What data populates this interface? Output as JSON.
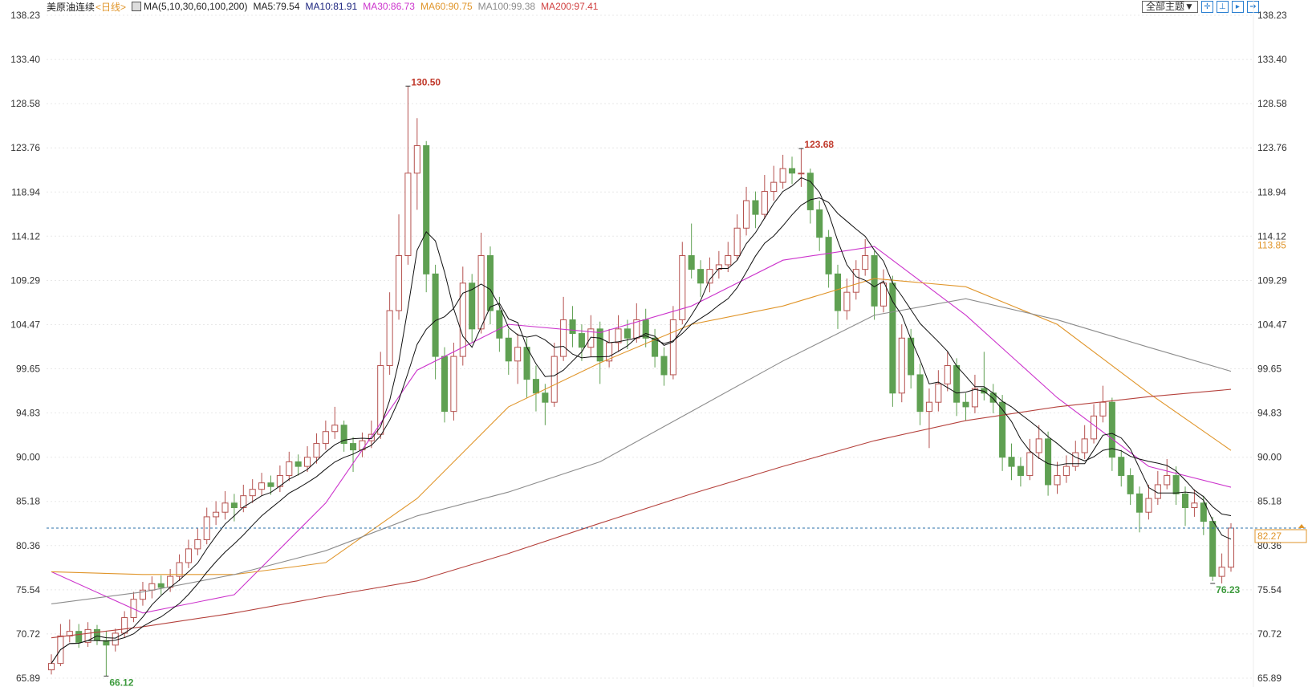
{
  "header": {
    "symbol": "美原油连续",
    "period": "<日线>",
    "ma_params": "MA(5,10,30,60,100,200)",
    "ma5": "MA5:79.54",
    "ma10": "MA10:81.91",
    "ma30": "MA30:86.73",
    "ma60": "MA60:90.75",
    "ma100": "MA100:99.38",
    "ma200": "MA200:97.41",
    "theme_button": "全部主题▼",
    "icons": [
      "crosshair-icon",
      "zoom-range-icon",
      "zoom-left-icon",
      "scroll-right-icon"
    ]
  },
  "colors": {
    "up": "#b5524f",
    "down": "#5fa052",
    "ma5": "#000000",
    "ma10": "#000000",
    "ma30": "#cc33cc",
    "ma60": "#e0952a",
    "ma100": "#8c8c8c",
    "ma200": "#b5423d",
    "last_line": "#2a6fa8",
    "high_label": "#c0392b",
    "low_label": "#3c9a3c"
  },
  "chart_data": {
    "type": "candlestick",
    "yticks": [
      "138.23",
      "133.40",
      "128.58",
      "123.76",
      "118.94",
      "114.12",
      "109.29",
      "104.47",
      "99.65",
      "94.83",
      "90.00",
      "85.18",
      "80.36",
      "75.54",
      "70.72",
      "65.89"
    ],
    "ylim": [
      65.89,
      138.23
    ],
    "grid": true,
    "last_price": "82.27",
    "marker_price": "113.85",
    "annotations": [
      {
        "label": "130.50",
        "index": 39,
        "value": 130.5,
        "kind": "high"
      },
      {
        "label": "123.68",
        "index": 82,
        "value": 123.68,
        "kind": "high"
      },
      {
        "label": "66.12",
        "index": 6,
        "value": 66.12,
        "kind": "low"
      },
      {
        "label": "76.23",
        "index": 127,
        "value": 76.23,
        "kind": "low"
      }
    ],
    "ohlc": [
      [
        66.8,
        68.5,
        66.3,
        67.5
      ],
      [
        67.5,
        71.8,
        67.2,
        70.5
      ],
      [
        70.5,
        72.3,
        69.8,
        71.0
      ],
      [
        71.0,
        71.8,
        69.2,
        69.8
      ],
      [
        69.8,
        72.0,
        69.3,
        71.2
      ],
      [
        71.2,
        71.7,
        69.5,
        70.0
      ],
      [
        70.0,
        71.0,
        66.12,
        69.5
      ],
      [
        69.5,
        71.3,
        68.8,
        70.8
      ],
      [
        70.8,
        73.2,
        70.3,
        72.5
      ],
      [
        72.5,
        75.3,
        72.0,
        74.5
      ],
      [
        74.5,
        76.4,
        73.8,
        75.5
      ],
      [
        75.5,
        77.0,
        74.6,
        76.2
      ],
      [
        76.2,
        77.1,
        75.0,
        75.8
      ],
      [
        75.8,
        77.8,
        75.3,
        77.0
      ],
      [
        77.0,
        79.4,
        76.5,
        78.5
      ],
      [
        78.5,
        81.0,
        77.9,
        80.0
      ],
      [
        80.0,
        82.3,
        79.3,
        81.0
      ],
      [
        81.0,
        84.5,
        80.5,
        83.5
      ],
      [
        83.5,
        85.2,
        82.6,
        84.0
      ],
      [
        84.0,
        86.3,
        83.2,
        85.0
      ],
      [
        85.0,
        86.0,
        83.0,
        84.5
      ],
      [
        84.5,
        87.0,
        84.0,
        85.8
      ],
      [
        85.8,
        87.6,
        85.0,
        86.5
      ],
      [
        86.5,
        88.3,
        85.8,
        87.2
      ],
      [
        87.2,
        88.0,
        85.9,
        86.8
      ],
      [
        86.8,
        89.1,
        86.2,
        88.0
      ],
      [
        88.0,
        90.6,
        87.4,
        89.5
      ],
      [
        89.5,
        90.3,
        88.0,
        89.0
      ],
      [
        89.0,
        91.2,
        88.4,
        90.0
      ],
      [
        90.0,
        92.6,
        89.3,
        91.5
      ],
      [
        91.5,
        94.0,
        90.8,
        92.8
      ],
      [
        92.8,
        95.5,
        92.0,
        93.5
      ],
      [
        93.5,
        94.0,
        90.6,
        91.5
      ],
      [
        91.5,
        92.2,
        88.4,
        90.8
      ],
      [
        90.8,
        92.7,
        90.0,
        91.8
      ],
      [
        91.8,
        94.0,
        91.0,
        92.5
      ],
      [
        92.5,
        101.5,
        92.0,
        100.0
      ],
      [
        100.0,
        108.0,
        99.0,
        106.0
      ],
      [
        106.0,
        116.5,
        105.0,
        112.0
      ],
      [
        112.0,
        130.5,
        111.0,
        121.0
      ],
      [
        121.0,
        127.0,
        117.0,
        124.0
      ],
      [
        124.0,
        124.5,
        108.0,
        110.0
      ],
      [
        110.0,
        111.0,
        98.5,
        101.0
      ],
      [
        101.0,
        102.0,
        93.8,
        95.0
      ],
      [
        95.0,
        102.5,
        94.0,
        101.0
      ],
      [
        101.0,
        110.8,
        100.0,
        109.0
      ],
      [
        109.0,
        110.0,
        102.5,
        104.0
      ],
      [
        104.0,
        114.5,
        103.5,
        112.0
      ],
      [
        112.0,
        113.0,
        104.5,
        106.0
      ],
      [
        106.0,
        107.5,
        101.5,
        103.0
      ],
      [
        103.0,
        104.0,
        99.0,
        100.5
      ],
      [
        100.5,
        103.5,
        98.0,
        102.0
      ],
      [
        102.0,
        103.0,
        96.5,
        98.5
      ],
      [
        98.5,
        100.0,
        95.0,
        97.0
      ],
      [
        97.0,
        98.0,
        93.5,
        96.0
      ],
      [
        96.0,
        102.5,
        95.5,
        101.0
      ],
      [
        101.0,
        107.5,
        100.5,
        105.0
      ],
      [
        105.0,
        106.5,
        102.0,
        103.5
      ],
      [
        103.5,
        104.5,
        100.5,
        102.0
      ],
      [
        102.0,
        105.5,
        101.0,
        104.0
      ],
      [
        104.0,
        104.8,
        98.0,
        100.5
      ],
      [
        100.5,
        104.0,
        99.8,
        102.5
      ],
      [
        102.5,
        105.5,
        101.5,
        104.0
      ],
      [
        104.0,
        105.0,
        101.8,
        103.0
      ],
      [
        103.0,
        106.8,
        102.5,
        105.0
      ],
      [
        105.0,
        106.2,
        102.0,
        103.0
      ],
      [
        103.0,
        104.0,
        99.8,
        101.0
      ],
      [
        101.0,
        102.0,
        97.8,
        99.0
      ],
      [
        99.0,
        106.5,
        98.5,
        105.0
      ],
      [
        105.0,
        113.5,
        104.5,
        112.0
      ],
      [
        112.0,
        115.5,
        109.5,
        110.5
      ],
      [
        110.5,
        111.5,
        107.5,
        109.0
      ],
      [
        109.0,
        111.8,
        108.0,
        110.5
      ],
      [
        110.5,
        112.5,
        109.5,
        111.0
      ],
      [
        111.0,
        113.5,
        110.2,
        112.0
      ],
      [
        112.0,
        116.5,
        111.5,
        115.0
      ],
      [
        115.0,
        119.5,
        114.2,
        118.0
      ],
      [
        118.0,
        119.0,
        115.0,
        116.5
      ],
      [
        116.5,
        120.8,
        116.0,
        119.0
      ],
      [
        119.0,
        121.8,
        118.0,
        120.0
      ],
      [
        120.0,
        123.0,
        119.3,
        121.5
      ],
      [
        121.5,
        122.8,
        119.8,
        121.0
      ],
      [
        121.0,
        123.68,
        119.5,
        121.0
      ],
      [
        121.0,
        121.5,
        115.5,
        117.0
      ],
      [
        117.0,
        118.0,
        112.5,
        114.0
      ],
      [
        114.0,
        114.8,
        108.5,
        110.0
      ],
      [
        110.0,
        111.0,
        104.0,
        106.0
      ],
      [
        106.0,
        109.5,
        105.0,
        108.0
      ],
      [
        108.0,
        111.5,
        107.2,
        110.5
      ],
      [
        110.5,
        113.8,
        109.8,
        112.0
      ],
      [
        112.0,
        112.5,
        105.0,
        106.5
      ],
      [
        106.5,
        110.5,
        105.8,
        109.0
      ],
      [
        109.0,
        109.8,
        95.5,
        97.0
      ],
      [
        97.0,
        104.5,
        96.0,
        103.0
      ],
      [
        103.0,
        104.0,
        97.5,
        99.0
      ],
      [
        99.0,
        100.2,
        93.5,
        95.0
      ],
      [
        95.0,
        97.5,
        91.0,
        96.0
      ],
      [
        96.0,
        99.5,
        95.0,
        98.0
      ],
      [
        98.0,
        101.5,
        97.2,
        100.0
      ],
      [
        100.0,
        100.8,
        94.5,
        96.0
      ],
      [
        96.0,
        97.0,
        94.0,
        95.5
      ],
      [
        95.5,
        99.0,
        94.8,
        97.5
      ],
      [
        97.5,
        101.5,
        96.2,
        97.0
      ],
      [
        97.0,
        98.0,
        94.8,
        96.0
      ],
      [
        96.0,
        96.8,
        88.5,
        90.0
      ],
      [
        90.0,
        91.5,
        87.5,
        89.0
      ],
      [
        89.0,
        90.0,
        86.8,
        88.0
      ],
      [
        88.0,
        92.0,
        87.5,
        90.5
      ],
      [
        90.5,
        93.5,
        89.8,
        92.0
      ],
      [
        92.0,
        92.8,
        85.8,
        87.0
      ],
      [
        87.0,
        89.5,
        86.0,
        88.0
      ],
      [
        88.0,
        90.2,
        87.2,
        89.0
      ],
      [
        89.0,
        91.8,
        88.5,
        90.5
      ],
      [
        90.5,
        93.5,
        89.8,
        92.0
      ],
      [
        92.0,
        95.8,
        91.5,
        94.5
      ],
      [
        94.5,
        97.8,
        93.8,
        96.0
      ],
      [
        96.0,
        96.5,
        88.5,
        90.0
      ],
      [
        90.0,
        90.8,
        86.8,
        88.0
      ],
      [
        88.0,
        88.8,
        84.8,
        86.0
      ],
      [
        86.0,
        86.8,
        81.8,
        84.0
      ],
      [
        84.0,
        87.0,
        83.2,
        85.5
      ],
      [
        85.5,
        88.5,
        84.8,
        87.0
      ],
      [
        87.0,
        89.8,
        86.5,
        88.0
      ],
      [
        88.0,
        89.0,
        84.8,
        86.0
      ],
      [
        86.0,
        86.8,
        82.5,
        84.5
      ],
      [
        84.5,
        86.5,
        83.5,
        85.0
      ],
      [
        85.0,
        85.8,
        81.5,
        83.0
      ],
      [
        83.0,
        83.5,
        76.5,
        77.0
      ],
      [
        77.0,
        79.5,
        76.23,
        78.0
      ],
      [
        78.0,
        82.8,
        77.5,
        82.27
      ]
    ],
    "ma_lines": [
      {
        "name": "MA30",
        "index": [
          0,
          10,
          20,
          30,
          40,
          50,
          60,
          70,
          80,
          90,
          100,
          110,
          120,
          129
        ],
        "values": [
          77.5,
          73.0,
          75.0,
          85.0,
          99.5,
          104.5,
          103.6,
          106.5,
          111.5,
          113.0,
          105.5,
          96.5,
          89.0,
          86.73
        ]
      },
      {
        "name": "MA60",
        "index": [
          0,
          10,
          20,
          30,
          40,
          50,
          60,
          70,
          80,
          90,
          100,
          110,
          120,
          129
        ],
        "values": [
          77.5,
          77.2,
          77.2,
          78.5,
          85.5,
          95.5,
          100.3,
          104.5,
          106.5,
          109.5,
          108.6,
          104.5,
          97.0,
          90.75
        ]
      },
      {
        "name": "MA100",
        "index": [
          0,
          10,
          20,
          30,
          40,
          50,
          60,
          70,
          80,
          90,
          100,
          110,
          120,
          129
        ],
        "values": [
          74.0,
          75.3,
          77.2,
          79.8,
          83.6,
          86.2,
          89.5,
          95.0,
          100.5,
          105.5,
          107.3,
          105.0,
          102.0,
          99.38
        ]
      },
      {
        "name": "MA200",
        "index": [
          0,
          10,
          20,
          30,
          40,
          50,
          60,
          70,
          80,
          90,
          100,
          110,
          120,
          129
        ],
        "values": [
          70.3,
          71.5,
          73.0,
          74.8,
          76.5,
          79.5,
          82.8,
          86.0,
          89.0,
          91.8,
          94.0,
          95.5,
          96.6,
          97.41
        ]
      }
    ]
  }
}
